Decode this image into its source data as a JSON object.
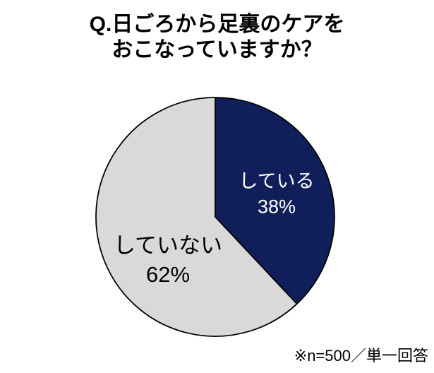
{
  "title": {
    "line1": "Q.日ごろから足裏のケアを",
    "line2": "おこなっていますか？"
  },
  "footer": {
    "note": "※n=500／単一回答"
  },
  "chart_data": {
    "type": "pie",
    "title": "Q.日ごろから足裏のケアをおこなっていますか？",
    "start_angle_deg": 0,
    "direction": "clockwise",
    "outline_color": "#000000",
    "background_color": "#ffffff",
    "legend": "none",
    "note": "※n=500／単一回答",
    "slices": [
      {
        "label": "している",
        "value": 38,
        "value_label": "38%",
        "color": "#101F5A",
        "text_color": "#FFFFFF"
      },
      {
        "label": "していない",
        "value": 62,
        "value_label": "62%",
        "color": "#D9D9D9",
        "text_color": "#000000"
      }
    ]
  }
}
